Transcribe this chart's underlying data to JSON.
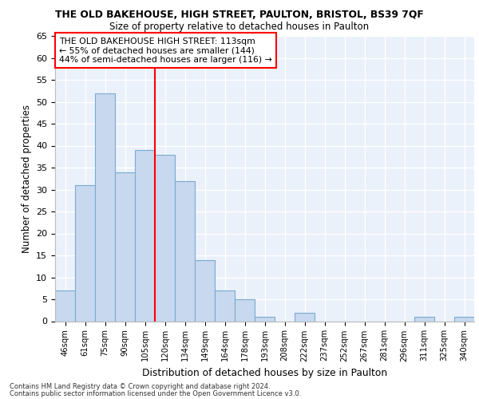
{
  "title1": "THE OLD BAKEHOUSE, HIGH STREET, PAULTON, BRISTOL, BS39 7QF",
  "title2": "Size of property relative to detached houses in Paulton",
  "xlabel": "Distribution of detached houses by size in Paulton",
  "ylabel": "Number of detached properties",
  "categories": [
    "46sqm",
    "61sqm",
    "75sqm",
    "90sqm",
    "105sqm",
    "120sqm",
    "134sqm",
    "149sqm",
    "164sqm",
    "178sqm",
    "193sqm",
    "208sqm",
    "222sqm",
    "237sqm",
    "252sqm",
    "267sqm",
    "281sqm",
    "296sqm",
    "311sqm",
    "325sqm",
    "340sqm"
  ],
  "values": [
    7,
    31,
    52,
    34,
    39,
    38,
    32,
    14,
    7,
    5,
    1,
    0,
    2,
    0,
    0,
    0,
    0,
    0,
    1,
    0,
    1
  ],
  "bar_color": "#c8d8ee",
  "bar_edge_color": "#7aaad0",
  "vline_x": 5,
  "vline_color": "red",
  "vline_linewidth": 1.5,
  "annotation_text": "THE OLD BAKEHOUSE HIGH STREET: 113sqm\n← 55% of detached houses are smaller (144)\n44% of semi-detached houses are larger (116) →",
  "annotation_box_color": "white",
  "annotation_box_edge": "red",
  "ylim": [
    0,
    65
  ],
  "yticks": [
    0,
    5,
    10,
    15,
    20,
    25,
    30,
    35,
    40,
    45,
    50,
    55,
    60,
    65
  ],
  "background_color": "#eaf1fb",
  "grid_color": "#ffffff",
  "footer1": "Contains HM Land Registry data © Crown copyright and database right 2024.",
  "footer2": "Contains public sector information licensed under the Open Government Licence v3.0."
}
